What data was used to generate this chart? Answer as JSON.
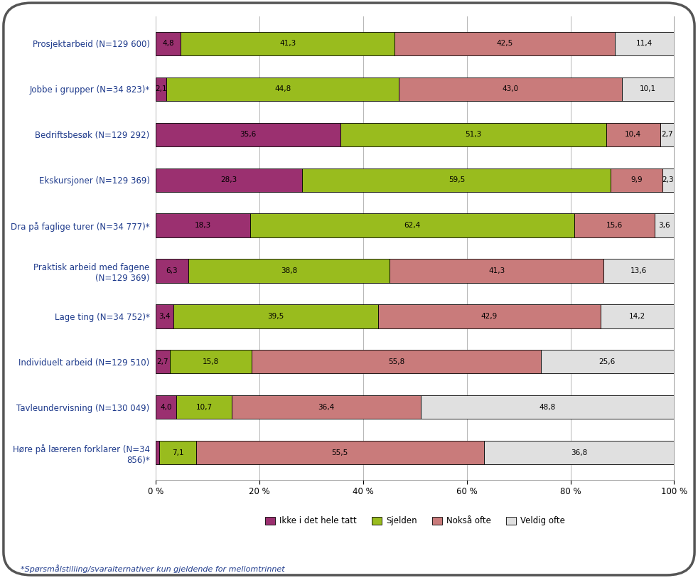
{
  "categories": [
    "Prosjektarbeid (N=129 600)",
    "Jobbe i grupper (N=34 823)*",
    "Bedriftsbesøk (N=129 292)",
    "Ekskursjoner (N=129 369)",
    "Dra på faglige turer (N=34 777)*",
    "Praktisk arbeid med fagene\n(N=129 369)",
    "Lage ting (N=34 752)*",
    "Individuelt arbeid (N=129 510)",
    "Tavleundervisning (N=130 049)",
    "Høre på læreren forklarer (N=34\n856)*"
  ],
  "data": [
    [
      4.8,
      41.3,
      42.5,
      11.4
    ],
    [
      2.1,
      44.8,
      43.0,
      10.1
    ],
    [
      35.6,
      51.3,
      10.4,
      2.7
    ],
    [
      28.3,
      59.5,
      9.9,
      2.3
    ],
    [
      18.3,
      62.4,
      15.6,
      3.6
    ],
    [
      6.3,
      38.8,
      41.3,
      13.6
    ],
    [
      3.4,
      39.5,
      42.9,
      14.2
    ],
    [
      2.7,
      15.8,
      55.8,
      25.6
    ],
    [
      4.0,
      10.7,
      36.4,
      48.8
    ],
    [
      0.7,
      7.1,
      55.5,
      36.8
    ]
  ],
  "colors": [
    "#9B3070",
    "#99BC1E",
    "#C97B7B",
    "#E0E0E0"
  ],
  "legend_labels": [
    "Ikke i det hele tatt",
    "Sjelden",
    "Nokså ofte",
    "Veldig ofte"
  ],
  "footnote": "*Spørsmålstilling/svaralternativer kun gjeldende for mellomtrinnet",
  "bar_height": 0.52,
  "background_color": "#FFFFFF",
  "label_color_blue": "#1F3B8C",
  "figwidth": 9.82,
  "figheight": 8.13,
  "dpi": 100
}
